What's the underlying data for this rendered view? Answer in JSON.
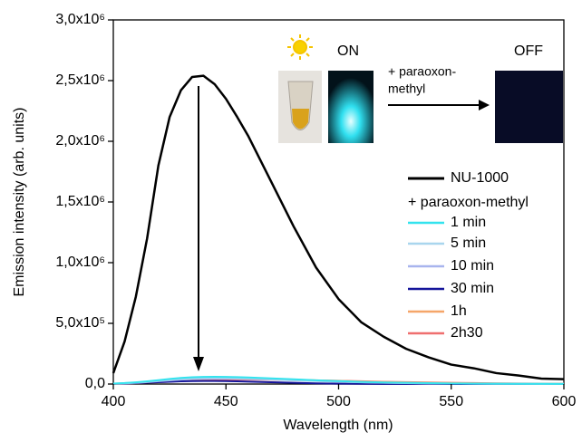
{
  "chart_data": {
    "type": "line",
    "x_label": "Wavelength (nm)",
    "y_label": "Emission intensity (arb. units)",
    "xlim": [
      400,
      600
    ],
    "xticks": [
      400,
      450,
      500,
      550,
      600
    ],
    "ylim": [
      0,
      3000000
    ],
    "yticks": [
      {
        "value": 0,
        "label": "0,0"
      },
      {
        "value": 500000,
        "label": "5,0x10⁵"
      },
      {
        "value": 1000000,
        "label": "1,0x10⁶"
      },
      {
        "value": 1500000,
        "label": "1,5x10⁶"
      },
      {
        "value": 2000000,
        "label": "2,0x10⁶"
      },
      {
        "value": 2500000,
        "label": "2,5x10⁶"
      },
      {
        "value": 3000000,
        "label": "3,0x10⁶"
      }
    ],
    "legend_position": "right",
    "legend_heading": "+ paraoxon-methyl",
    "annotations": {
      "on": "ON",
      "off": "OFF",
      "reagent_lines": [
        "+ paraoxon-",
        "methyl"
      ]
    },
    "x": [
      400,
      405,
      410,
      415,
      420,
      425,
      430,
      435,
      440,
      445,
      450,
      455,
      460,
      470,
      480,
      490,
      500,
      510,
      520,
      530,
      540,
      550,
      560,
      570,
      580,
      590,
      600
    ],
    "series": [
      {
        "name": "NU-1000",
        "color": "#000000",
        "values": [
          90000,
          350000,
          720000,
          1200000,
          1800000,
          2200000,
          2420000,
          2530000,
          2540000,
          2470000,
          2350000,
          2200000,
          2040000,
          1670000,
          1300000,
          960000,
          700000,
          510000,
          390000,
          290000,
          220000,
          160000,
          130000,
          90000,
          70000,
          45000,
          40000
        ]
      },
      {
        "name": "1 min",
        "color": "#33e3ee",
        "values": [
          4000,
          8000,
          14000,
          22000,
          32000,
          42000,
          50000,
          56000,
          59000,
          60000,
          59000,
          57000,
          54000,
          47000,
          39000,
          31000,
          24000,
          18000,
          13000,
          10000,
          7000,
          5000,
          4000,
          3000,
          2000,
          2000,
          1000
        ]
      },
      {
        "name": "5 min",
        "color": "#a9d6ee",
        "values": [
          3000,
          7000,
          12000,
          19000,
          27000,
          35000,
          42000,
          47000,
          50000,
          51000,
          50000,
          48000,
          46000,
          40000,
          33000,
          26000,
          20000,
          15000,
          11000,
          8000,
          6000,
          4000,
          3000,
          2000,
          2000,
          1000,
          1000
        ]
      },
      {
        "name": "10 min",
        "color": "#a8b4ee",
        "values": [
          3000,
          6000,
          10000,
          16000,
          23000,
          30000,
          36000,
          41000,
          44000,
          45000,
          45000,
          44000,
          42000,
          37000,
          31000,
          25000,
          19000,
          14000,
          10000,
          7000,
          5000,
          4000,
          3000,
          2000,
          2000,
          1000,
          1000
        ]
      },
      {
        "name": "30 min",
        "color": "#14149a",
        "values": [
          2000,
          4000,
          7000,
          11000,
          15000,
          19000,
          22000,
          24000,
          25000,
          25000,
          24000,
          22000,
          20000,
          15000,
          10000,
          6000,
          3000,
          2000,
          1000,
          1000,
          1000,
          0,
          0,
          0,
          0,
          0,
          0
        ]
      },
      {
        "name": "1h",
        "color": "#f5a669",
        "values": [
          2000,
          5000,
          9000,
          14000,
          20000,
          27000,
          33000,
          38000,
          42000,
          44000,
          45000,
          45000,
          44000,
          41000,
          36000,
          31000,
          26000,
          21000,
          17000,
          13000,
          10000,
          8000,
          6000,
          5000,
          4000,
          3000,
          3000
        ]
      },
      {
        "name": "2h30",
        "color": "#ef6f6f",
        "values": [
          2000,
          4000,
          7000,
          11000,
          15000,
          20000,
          25000,
          29000,
          32000,
          34000,
          35000,
          36000,
          36000,
          35000,
          33000,
          30000,
          27000,
          23000,
          19000,
          16000,
          13000,
          10000,
          8000,
          6000,
          5000,
          4000,
          3000
        ]
      }
    ]
  }
}
